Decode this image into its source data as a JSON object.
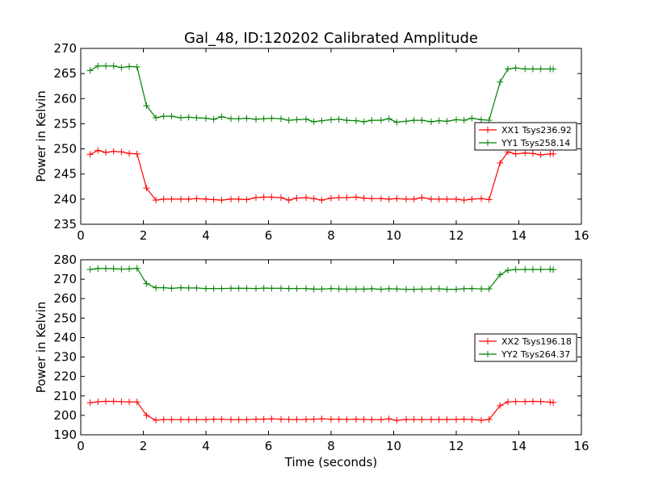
{
  "figure": {
    "title": "Gal_48, ID:120202 Calibrated Amplitude"
  },
  "chart_data": [
    {
      "type": "line",
      "title": "Gal_48, ID:120202 Calibrated Amplitude",
      "xlabel": "",
      "ylabel": "Power in Kelvin",
      "xlim": [
        0,
        16
      ],
      "ylim": [
        235,
        270
      ],
      "xticks": [
        0,
        2,
        4,
        6,
        8,
        10,
        12,
        14,
        16
      ],
      "yticks": [
        235,
        240,
        245,
        250,
        255,
        260,
        265,
        270
      ],
      "grid": false,
      "legend_position": "right",
      "x": [
        0.3,
        0.55,
        0.8,
        1.05,
        1.3,
        1.55,
        1.8,
        2.1,
        2.4,
        2.65,
        2.9,
        3.2,
        3.45,
        3.7,
        4.0,
        4.25,
        4.5,
        4.8,
        5.05,
        5.3,
        5.6,
        5.85,
        6.1,
        6.4,
        6.65,
        6.9,
        7.2,
        7.45,
        7.7,
        8.0,
        8.25,
        8.5,
        8.8,
        9.05,
        9.3,
        9.6,
        9.85,
        10.1,
        10.4,
        10.65,
        10.9,
        11.2,
        11.45,
        11.7,
        12.0,
        12.25,
        12.5,
        12.8,
        13.05,
        13.4,
        13.65,
        13.9,
        14.2,
        14.45,
        14.7,
        15.0,
        15.1
      ],
      "series": [
        {
          "name": "XX1 Tsys236.92",
          "color": "#ff0000",
          "values": [
            248.9,
            249.7,
            249.3,
            249.5,
            249.4,
            249.1,
            249.0,
            242.2,
            239.8,
            240.0,
            240.0,
            240.0,
            240.0,
            240.1,
            240.0,
            239.9,
            239.8,
            240.0,
            240.0,
            239.9,
            240.3,
            240.4,
            240.4,
            240.3,
            239.8,
            240.2,
            240.3,
            240.1,
            239.8,
            240.2,
            240.3,
            240.3,
            240.4,
            240.2,
            240.1,
            240.1,
            240.0,
            240.1,
            240.0,
            240.0,
            240.3,
            240.0,
            240.0,
            240.0,
            240.0,
            239.8,
            240.0,
            240.1,
            239.9,
            247.2,
            249.4,
            249.0,
            249.2,
            249.1,
            248.8,
            249.0,
            249.0
          ]
        },
        {
          "name": "YY1 Tsys258.14",
          "color": "#008000",
          "values": [
            265.6,
            266.5,
            266.5,
            266.5,
            266.2,
            266.4,
            266.3,
            258.6,
            256.2,
            256.5,
            256.5,
            256.2,
            256.3,
            256.2,
            256.1,
            255.9,
            256.4,
            256.0,
            256.0,
            256.1,
            255.9,
            256.0,
            256.1,
            256.0,
            255.7,
            255.8,
            255.9,
            255.4,
            255.6,
            255.8,
            255.9,
            255.7,
            255.6,
            255.4,
            255.7,
            255.7,
            256.0,
            255.3,
            255.5,
            255.7,
            255.7,
            255.4,
            255.6,
            255.5,
            255.8,
            255.7,
            256.1,
            255.8,
            255.7,
            263.3,
            265.9,
            266.1,
            265.9,
            265.9,
            265.9,
            265.9,
            265.9
          ]
        }
      ]
    },
    {
      "type": "line",
      "title": "",
      "xlabel": "Time (seconds)",
      "ylabel": "Power in Kelvin",
      "xlim": [
        0,
        16
      ],
      "ylim": [
        190,
        280
      ],
      "xticks": [
        0,
        2,
        4,
        6,
        8,
        10,
        12,
        14,
        16
      ],
      "yticks": [
        190,
        200,
        210,
        220,
        230,
        240,
        250,
        260,
        270,
        280
      ],
      "grid": false,
      "legend_position": "right",
      "x": [
        0.3,
        0.55,
        0.8,
        1.05,
        1.3,
        1.55,
        1.8,
        2.1,
        2.4,
        2.65,
        2.9,
        3.2,
        3.45,
        3.7,
        4.0,
        4.25,
        4.5,
        4.8,
        5.05,
        5.3,
        5.6,
        5.85,
        6.1,
        6.4,
        6.65,
        6.9,
        7.2,
        7.45,
        7.7,
        8.0,
        8.25,
        8.5,
        8.8,
        9.05,
        9.3,
        9.6,
        9.85,
        10.1,
        10.4,
        10.65,
        10.9,
        11.2,
        11.45,
        11.7,
        12.0,
        12.25,
        12.5,
        12.8,
        13.05,
        13.4,
        13.65,
        13.9,
        14.2,
        14.45,
        14.7,
        15.0,
        15.1
      ],
      "series": [
        {
          "name": "XX2 Tsys196.18",
          "color": "#ff0000",
          "values": [
            206.5,
            207.0,
            207.2,
            207.2,
            207.0,
            206.9,
            206.9,
            200.0,
            197.5,
            197.8,
            197.8,
            197.8,
            197.8,
            197.8,
            197.8,
            198.0,
            198.0,
            197.8,
            197.8,
            197.8,
            198.0,
            198.0,
            198.2,
            198.0,
            197.9,
            197.9,
            197.9,
            198.0,
            198.2,
            198.0,
            198.0,
            197.9,
            198.0,
            197.9,
            197.8,
            197.8,
            198.2,
            197.4,
            197.9,
            197.9,
            197.8,
            197.9,
            197.9,
            197.9,
            197.9,
            198.0,
            197.9,
            197.5,
            197.9,
            205.0,
            206.9,
            207.1,
            207.1,
            207.2,
            207.1,
            206.8,
            206.6
          ]
        },
        {
          "name": "YY2 Tsys264.37",
          "color": "#008000",
          "values": [
            275.0,
            275.5,
            275.5,
            275.4,
            275.2,
            275.3,
            275.6,
            267.7,
            265.6,
            265.6,
            265.3,
            265.6,
            265.5,
            265.5,
            265.2,
            265.2,
            265.2,
            265.3,
            265.3,
            265.3,
            265.2,
            265.4,
            265.3,
            265.3,
            265.2,
            265.2,
            265.2,
            264.9,
            264.9,
            265.2,
            265.0,
            264.9,
            264.9,
            264.9,
            265.1,
            264.8,
            265.1,
            265.0,
            264.8,
            264.8,
            264.9,
            265.0,
            265.1,
            264.8,
            264.8,
            265.1,
            265.2,
            265.0,
            265.0,
            272.3,
            274.6,
            275.0,
            275.0,
            275.0,
            275.0,
            275.1,
            274.9
          ]
        }
      ]
    }
  ]
}
